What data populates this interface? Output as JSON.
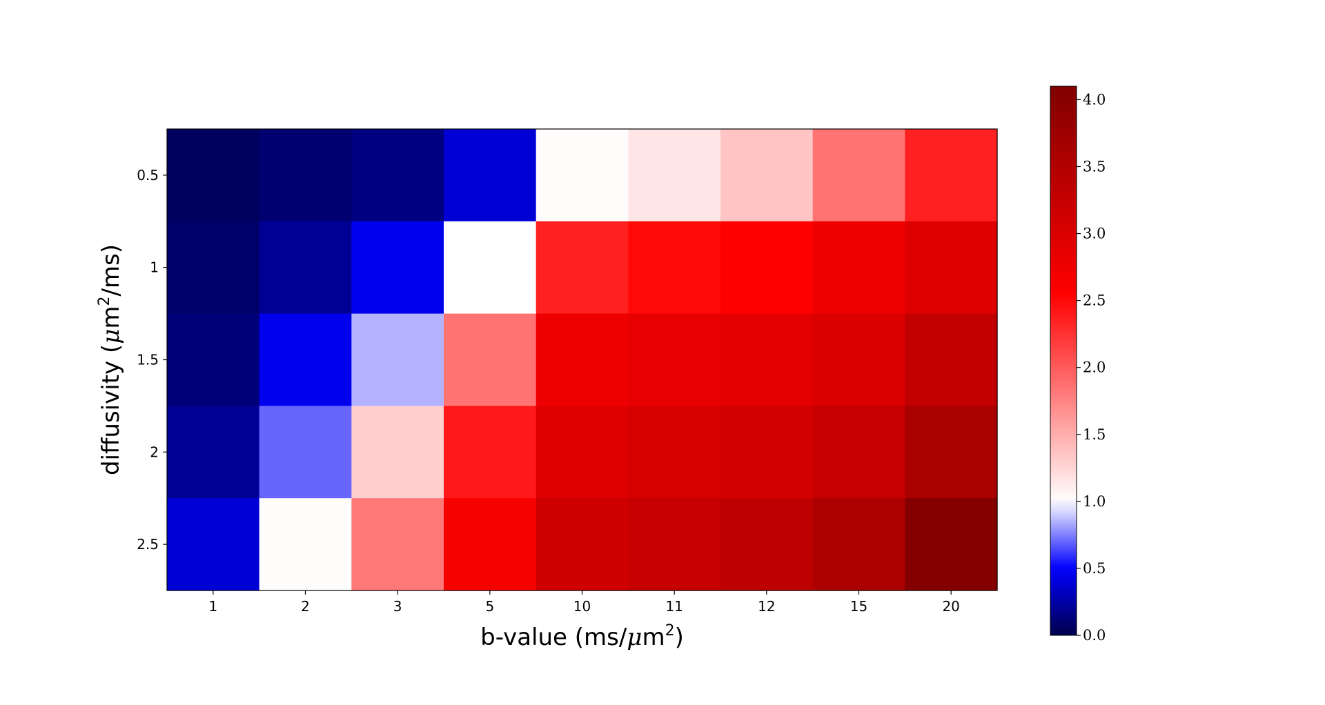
{
  "chart_data": {
    "type": "heatmap",
    "x_categories": [
      "1",
      "2",
      "3",
      "5",
      "10",
      "11",
      "12",
      "15",
      "20"
    ],
    "y_categories": [
      "0.5",
      "1",
      "1.5",
      "2",
      "2.5"
    ],
    "xlabel": {
      "pre": "b-value (ms/",
      "math": "μ",
      "post": "m",
      "sup": "2",
      "end": ")"
    },
    "ylabel": {
      "pre": "diffusivity (",
      "math": "μ",
      "post": "m",
      "sup": "2",
      "end": "/ms)"
    },
    "values": [
      [
        0.05,
        0.1,
        0.15,
        0.38,
        1.02,
        1.15,
        1.35,
        1.85,
        2.35
      ],
      [
        0.08,
        0.2,
        0.45,
        1.0,
        2.35,
        2.5,
        2.55,
        2.75,
        2.95
      ],
      [
        0.12,
        0.45,
        0.85,
        1.85,
        2.75,
        2.85,
        2.88,
        3.0,
        3.3
      ],
      [
        0.2,
        0.7,
        1.3,
        2.4,
        2.95,
        3.05,
        3.1,
        3.25,
        3.6
      ],
      [
        0.38,
        1.02,
        1.82,
        2.65,
        3.15,
        3.25,
        3.35,
        3.55,
        4.05
      ]
    ],
    "colormap": "seismic",
    "colorbar": {
      "min": 0.0,
      "max": 4.1,
      "ticks": [
        "0.0",
        "0.5",
        "1.0",
        "1.5",
        "2.0",
        "2.5",
        "3.0",
        "3.5",
        "4.0"
      ],
      "tick_values": [
        0.0,
        0.5,
        1.0,
        1.5,
        2.0,
        2.5,
        3.0,
        3.5,
        4.0
      ]
    },
    "legend": "none",
    "grid": false
  }
}
